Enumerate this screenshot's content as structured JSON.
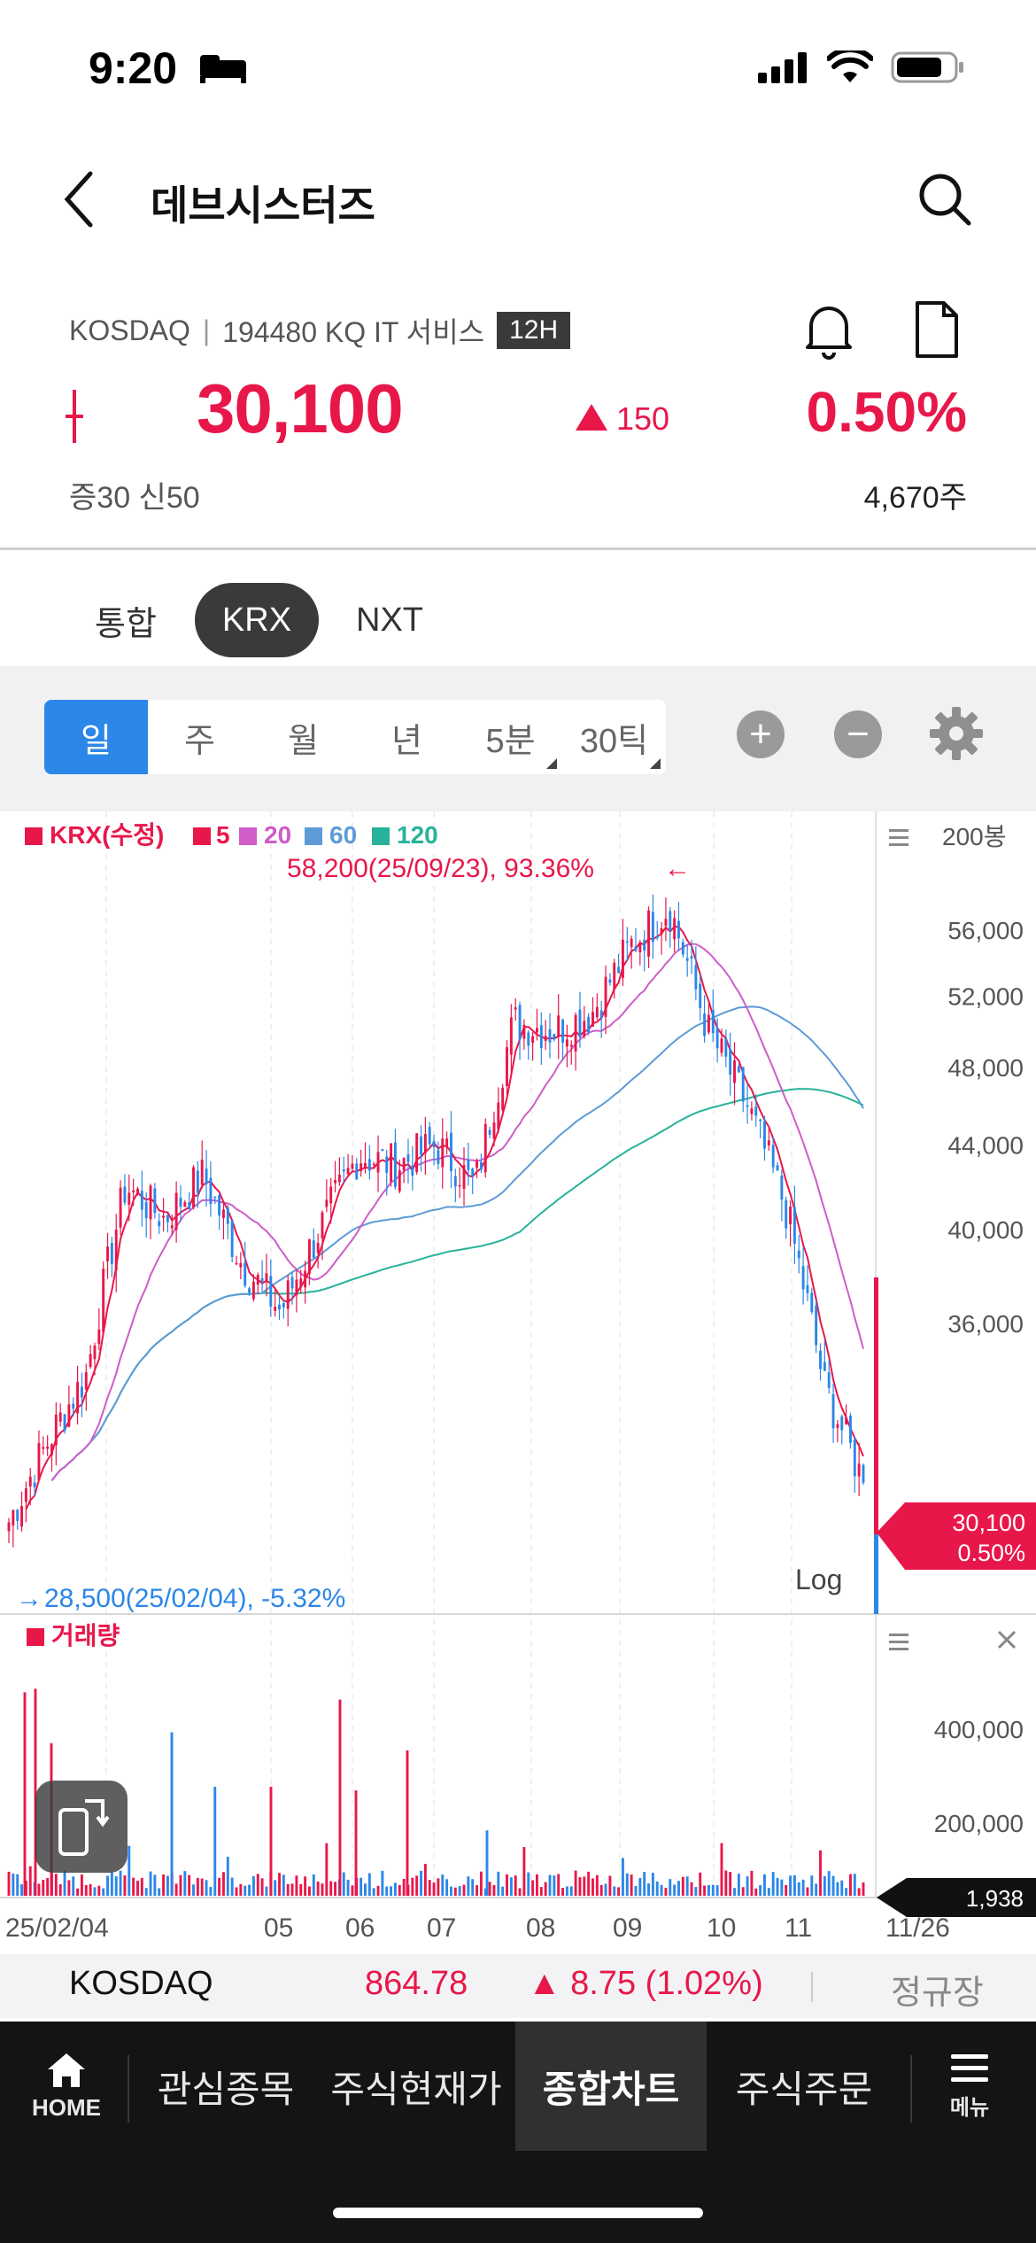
{
  "status_bar": {
    "time": "9:20"
  },
  "header": {
    "stock_name": "데브시스터즈"
  },
  "info": {
    "market": "KOSDAQ",
    "code_line": "194480 KQ IT 서비스",
    "badge": "12H",
    "price": "30,100",
    "change": "150",
    "change_pct": "0.50%",
    "margin": "증30  신50",
    "volume": "4,670주"
  },
  "exchange_tabs": [
    "통합",
    "KRX",
    "NXT"
  ],
  "periods": [
    "일",
    "주",
    "월",
    "년",
    "5분",
    "30틱"
  ],
  "chart_data": {
    "type": "candlestick",
    "legend": [
      "KRX(수정)",
      "5",
      "20",
      "60",
      "120"
    ],
    "legend_colors": [
      "#e8174a",
      "#e8174a",
      "#cf5cc9",
      "#5d9bd6",
      "#27b39a"
    ],
    "bar_count_label": "200봉",
    "y_ticks": [
      "56,000",
      "52,000",
      "48,000",
      "44,000",
      "40,000",
      "36,000"
    ],
    "y_tick_values": [
      56000,
      52000,
      48000,
      44000,
      40000,
      36000
    ],
    "x_ticks": [
      "25/02/04",
      "05",
      "06",
      "07",
      "08",
      "09",
      "10",
      "11",
      "11/26"
    ],
    "high_annotation": "58,200(25/09/23), 93.36%",
    "low_annotation": "28,500(25/02/04), -5.32%",
    "current_price": "30,100",
    "current_pct": "0.50%",
    "scale_label": "Log",
    "volume_label": "거래량",
    "volume_ticks": [
      "400,000",
      "200,000"
    ],
    "volume_tick_values": [
      400000,
      200000
    ],
    "current_volume": "1,938",
    "close_trend": [
      [
        "25/02/04",
        28800
      ],
      [
        "25/02/18",
        31500
      ],
      [
        "25/03/04",
        34000
      ],
      [
        "25/03/18",
        42000
      ],
      [
        "25/04/01",
        40500
      ],
      [
        "25/04/15",
        42500
      ],
      [
        "25/04/29",
        38500
      ],
      [
        "25/05/13",
        36500
      ],
      [
        "25/05/27",
        40000
      ],
      [
        "25/06/10",
        43500
      ],
      [
        "25/06/24",
        43000
      ],
      [
        "25/07/08",
        44000
      ],
      [
        "25/07/22",
        42000
      ],
      [
        "25/08/05",
        50500
      ],
      [
        "25/08/19",
        50000
      ],
      [
        "25/09/02",
        51000
      ],
      [
        "25/09/16",
        55000
      ],
      [
        "25/09/23",
        57500
      ],
      [
        "25/10/07",
        50000
      ],
      [
        "25/10/21",
        46000
      ],
      [
        "25/11/04",
        41000
      ],
      [
        "25/11/18",
        33500
      ],
      [
        "25/11/26",
        30100
      ]
    ],
    "ma5_color": "#e8174a",
    "ma20_color": "#cf5cc9",
    "ma60_color": "#5d9bd6",
    "ma120_color": "#27b39a"
  },
  "ticker": {
    "name": "KOSDAQ",
    "value": "864.78",
    "change": "▲ 8.75 (1.02%)",
    "session": "정규장"
  },
  "nav": {
    "home": "HOME",
    "watchlist": "관심종목",
    "quote": "주식현재가",
    "chart": "종합차트",
    "order": "주식주문",
    "menu": "메뉴"
  },
  "colors": {
    "up": "#e8174a",
    "down": "#2b87e8",
    "accent": "#2b87e8"
  }
}
